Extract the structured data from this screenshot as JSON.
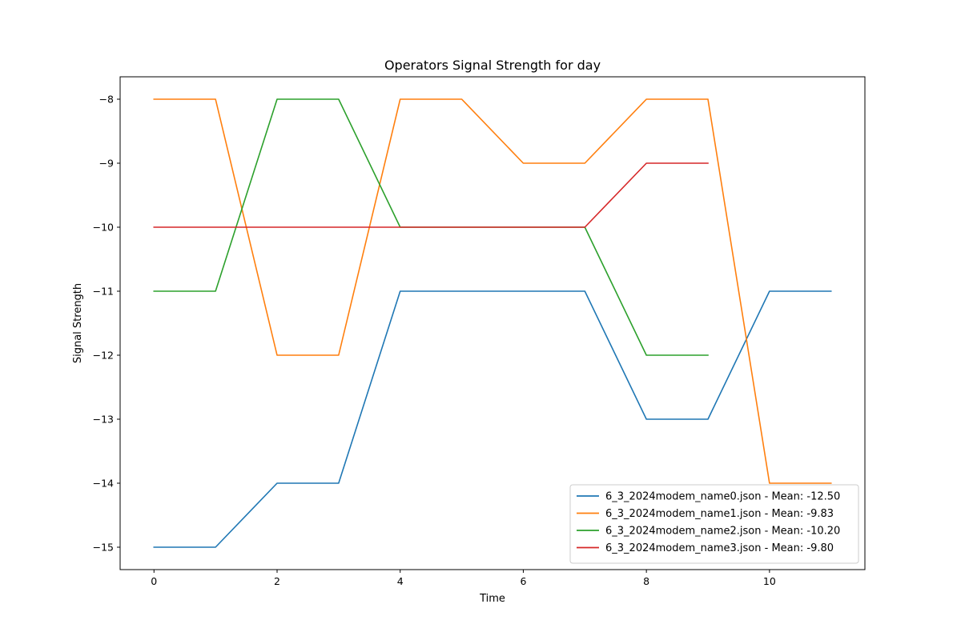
{
  "chart_data": {
    "type": "line",
    "title": "Operators Signal Strength for day",
    "xlabel": "Time",
    "ylabel": "Signal Strength",
    "xlim": [
      -0.55,
      11.55
    ],
    "ylim": [
      -15.35,
      -7.65
    ],
    "xticks": [
      0,
      2,
      4,
      6,
      8,
      10
    ],
    "yticks": [
      -8,
      -9,
      -10,
      -11,
      -12,
      -13,
      -14,
      -15
    ],
    "grid": false,
    "legend_position": "lower right",
    "series": [
      {
        "name": "6_3_2024modem_name0.json - Mean: -12.50",
        "color": "#1f77b4",
        "x": [
          0,
          1,
          2,
          3,
          4,
          5,
          6,
          7,
          8,
          9,
          10,
          11
        ],
        "values": [
          -15,
          -15,
          -14,
          -14,
          -11,
          -11,
          -11,
          -11,
          -13,
          -13,
          -11,
          -11
        ]
      },
      {
        "name": "6_3_2024modem_name1.json - Mean: -9.83",
        "color": "#ff7f0e",
        "x": [
          0,
          1,
          2,
          3,
          4,
          5,
          6,
          7,
          8,
          9,
          10,
          11
        ],
        "values": [
          -8,
          -8,
          -12,
          -12,
          -8,
          -8,
          -9,
          -9,
          -8,
          -8,
          -14,
          -14
        ]
      },
      {
        "name": "6_3_2024modem_name2.json - Mean: -10.20",
        "color": "#2ca02c",
        "x": [
          0,
          1,
          2,
          3,
          4,
          5,
          6,
          7,
          8,
          9
        ],
        "values": [
          -11,
          -11,
          -8,
          -8,
          -10,
          -10,
          -10,
          -10,
          -12,
          -12
        ]
      },
      {
        "name": "6_3_2024modem_name3.json - Mean: -9.80",
        "color": "#d62728",
        "x": [
          0,
          1,
          2,
          3,
          4,
          5,
          6,
          7,
          8,
          9
        ],
        "values": [
          -10,
          -10,
          -10,
          -10,
          -10,
          -10,
          -10,
          -10,
          -9,
          -9
        ]
      }
    ]
  }
}
